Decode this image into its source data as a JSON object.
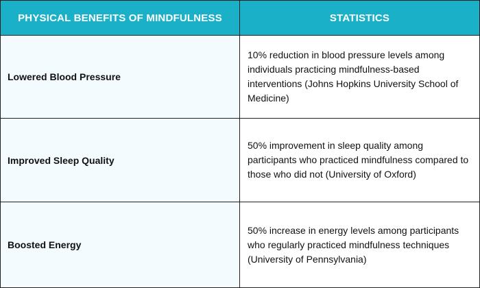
{
  "table": {
    "headers": {
      "benefit": "PHYSICAL BENEFITS OF MINDFULNESS",
      "statistics": "STATISTICS"
    },
    "rows": [
      {
        "benefit": "Lowered Blood Pressure",
        "statistic": "10% reduction in blood pressure levels among individuals practicing mindfulness-based interventions (Johns Hopkins University School of Medicine)"
      },
      {
        "benefit": "Improved Sleep Quality",
        "statistic": "50% improvement in sleep quality among participants who practiced mindfulness compared to those who did not (University of Oxford)"
      },
      {
        "benefit": "Boosted Energy",
        "statistic": "50% increase in energy levels among participants who regularly practiced mindfulness techniques (University of Pennsylvania)"
      }
    ],
    "colors": {
      "header_bg": "#1ab0c8",
      "header_text": "#ffffff",
      "benefit_cell_bg": "#f3fbfe",
      "border": "#1f1f1f"
    }
  }
}
